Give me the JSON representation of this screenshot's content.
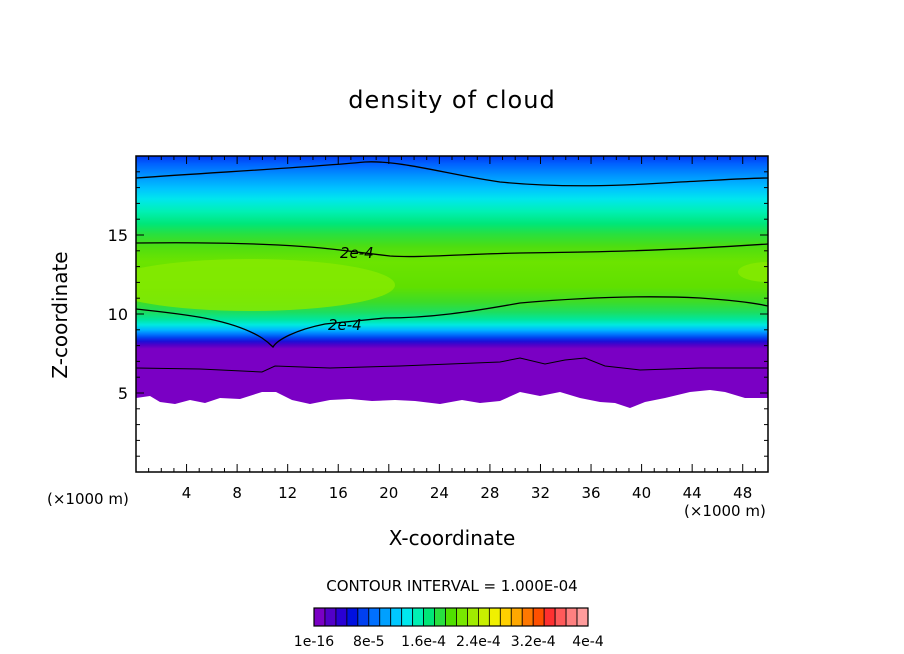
{
  "chart_data": {
    "type": "heatmap",
    "title": "density of cloud",
    "xlabel": "X-coordinate",
    "ylabel": "Z-coordinate",
    "x_unit_label": "(×1000 m)",
    "x_unit_label_right": "(×1000 m)",
    "xlim": [
      0,
      50
    ],
    "ylim": [
      0,
      20
    ],
    "x_ticks": [
      "4",
      "8",
      "12",
      "16",
      "20",
      "24",
      "28",
      "32",
      "36",
      "40",
      "44",
      "48"
    ],
    "y_ticks": [
      "5",
      "10",
      "15"
    ],
    "contour_interval_label": "CONTOUR INTERVAL = 1.000E-04",
    "colorbar_labels": [
      "1e-16",
      "8e-5",
      "1.6e-4",
      "2.4e-4",
      "3.2e-4",
      "4e-4"
    ],
    "colorbar_colors": [
      "#7a00c4",
      "#5200c8",
      "#2a00d4",
      "#0010e0",
      "#0040f0",
      "#0070ff",
      "#00a0ff",
      "#00c8ff",
      "#00e8ee",
      "#00f0b4",
      "#00e678",
      "#28e040",
      "#50e000",
      "#78e800",
      "#a0ec00",
      "#c8f000",
      "#f0f000",
      "#ffd000",
      "#ffa800",
      "#ff7800",
      "#ff5000",
      "#ff3030",
      "#ff5a5a",
      "#ff8080",
      "#ff9c9c"
    ],
    "contour_labels": [
      {
        "text": "2e-4",
        "x": 17,
        "z": 14.1
      },
      {
        "text": "2e-4",
        "x": 17,
        "z": 9.6
      }
    ],
    "cloud_base_z": 5,
    "grid": false,
    "legend": "bottom-center colorbar"
  }
}
